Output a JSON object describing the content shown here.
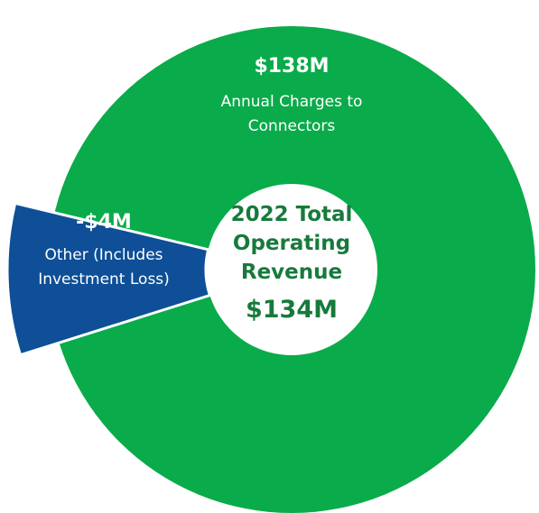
{
  "chart_data": {
    "type": "pie",
    "categories": [
      "Annual Charges to Connectors",
      "Other (Includes Investment Loss)"
    ],
    "values": [
      138,
      -4
    ],
    "value_labels": [
      "$138M",
      "-$4M"
    ],
    "colors": [
      "#0aab4a",
      "#0e4f97"
    ],
    "center_title": "2022 Total Operating Revenue",
    "total": 134,
    "total_label": "$134M"
  }
}
